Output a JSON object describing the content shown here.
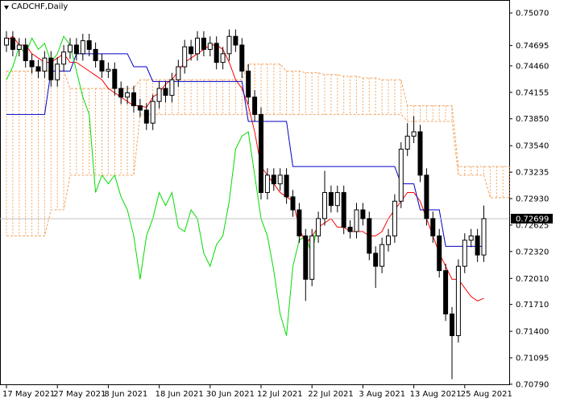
{
  "chart_data": {
    "type": "candlestick",
    "title": "CADCHF,Daily",
    "ylim": [
      0.7078,
      0.7521
    ],
    "yticks": [
      {
        "value": 0.7507,
        "label": "0.75070"
      },
      {
        "value": 0.74695,
        "label": "0.74695"
      },
      {
        "value": 0.7446,
        "label": "0.74460"
      },
      {
        "value": 0.74155,
        "label": "0.74155"
      },
      {
        "value": 0.7385,
        "label": "0.73850"
      },
      {
        "value": 0.7354,
        "label": "0.73540"
      },
      {
        "value": 0.73235,
        "label": "0.73235"
      },
      {
        "value": 0.7293,
        "label": "0.72930"
      },
      {
        "value": 0.72625,
        "label": "0.72625"
      },
      {
        "value": 0.7232,
        "label": "0.72320"
      },
      {
        "value": 0.7201,
        "label": "0.72010"
      },
      {
        "value": 0.7171,
        "label": "0.71710"
      },
      {
        "value": 0.714,
        "label": "0.71400"
      },
      {
        "value": 0.71095,
        "label": "0.71095"
      },
      {
        "value": 0.7079,
        "label": "0.70790"
      }
    ],
    "xticks": [
      {
        "value": 0,
        "label": "17 May 2021"
      },
      {
        "value": 8,
        "label": "27 May 2021"
      },
      {
        "value": 16,
        "label": "8 Jun 2021"
      },
      {
        "value": 24,
        "label": "18 Jun 2021"
      },
      {
        "value": 32,
        "label": "30 Jun 2021"
      },
      {
        "value": 40,
        "label": "12 Jul 2021"
      },
      {
        "value": 48,
        "label": "22 Jul 2021"
      },
      {
        "value": 56,
        "label": "3 Aug 2021"
      },
      {
        "value": 64,
        "label": "13 Aug 2021"
      },
      {
        "value": 72,
        "label": "25 Aug 2021"
      }
    ],
    "current_price": {
      "value": 0.72699,
      "label": "0.72699"
    },
    "open": [
      0.747,
      0.7478,
      0.7465,
      0.747,
      0.7452,
      0.7445,
      0.744,
      0.7455,
      0.743,
      0.7448,
      0.7462,
      0.747,
      0.746,
      0.7475,
      0.7465,
      0.7452,
      0.744,
      0.7442,
      0.742,
      0.741,
      0.7415,
      0.74,
      0.7395,
      0.738,
      0.7405,
      0.742,
      0.7412,
      0.743,
      0.7445,
      0.7468,
      0.746,
      0.7478,
      0.7465,
      0.7472,
      0.745,
      0.746,
      0.748,
      0.747,
      0.744,
      0.741,
      0.739,
      0.73,
      0.732,
      0.731,
      0.732,
      0.7295,
      0.728,
      0.725,
      0.72,
      0.725,
      0.727,
      0.73,
      0.7285,
      0.73,
      0.726,
      0.7255,
      0.728,
      0.727,
      0.723,
      0.7215,
      0.724,
      0.725,
      0.729,
      0.735,
      0.7365,
      0.737,
      0.732,
      0.727,
      0.725,
      0.721,
      0.716,
      0.7135,
      0.7215,
      0.7245,
      0.725,
      0.7228
    ],
    "high": [
      0.7486,
      0.7486,
      0.7478,
      0.7478,
      0.746,
      0.7453,
      0.7463,
      0.7463,
      0.7456,
      0.747,
      0.7478,
      0.7478,
      0.7483,
      0.7483,
      0.7473,
      0.746,
      0.745,
      0.745,
      0.7428,
      0.7423,
      0.7423,
      0.7408,
      0.7403,
      0.7413,
      0.7428,
      0.7428,
      0.7438,
      0.7453,
      0.7476,
      0.7476,
      0.7486,
      0.7486,
      0.748,
      0.748,
      0.7468,
      0.7488,
      0.7488,
      0.7478,
      0.7448,
      0.7418,
      0.7398,
      0.7328,
      0.7328,
      0.7328,
      0.7328,
      0.7303,
      0.7288,
      0.7258,
      0.7258,
      0.7278,
      0.7325,
      0.7308,
      0.7308,
      0.7308,
      0.7268,
      0.7288,
      0.7288,
      0.7278,
      0.7238,
      0.7248,
      0.7258,
      0.7298,
      0.7358,
      0.738,
      0.7388,
      0.7378,
      0.7328,
      0.7278,
      0.7258,
      0.7218,
      0.7168,
      0.7223,
      0.7253,
      0.7258,
      0.7258,
      0.7285
    ],
    "low": [
      0.7462,
      0.7457,
      0.7457,
      0.7444,
      0.7437,
      0.7432,
      0.7432,
      0.7422,
      0.7422,
      0.744,
      0.7454,
      0.7452,
      0.7452,
      0.7457,
      0.7444,
      0.7432,
      0.7432,
      0.7412,
      0.7402,
      0.7402,
      0.7392,
      0.7387,
      0.7372,
      0.7372,
      0.7397,
      0.7404,
      0.7404,
      0.7422,
      0.7437,
      0.7452,
      0.7452,
      0.7457,
      0.7457,
      0.7442,
      0.7442,
      0.7452,
      0.7462,
      0.7432,
      0.7402,
      0.7382,
      0.7292,
      0.7292,
      0.7302,
      0.7302,
      0.7287,
      0.7272,
      0.7242,
      0.7175,
      0.7192,
      0.7242,
      0.7262,
      0.7277,
      0.7277,
      0.7252,
      0.7247,
      0.7247,
      0.7262,
      0.7222,
      0.719,
      0.7207,
      0.7232,
      0.7242,
      0.7282,
      0.7342,
      0.7357,
      0.7312,
      0.7262,
      0.7242,
      0.7202,
      0.7152,
      0.7085,
      0.7127,
      0.7207,
      0.7237,
      0.722,
      0.722
    ],
    "close": [
      0.7478,
      0.7465,
      0.747,
      0.7452,
      0.7445,
      0.744,
      0.7455,
      0.743,
      0.7448,
      0.7462,
      0.747,
      0.746,
      0.7475,
      0.7465,
      0.7452,
      0.744,
      0.7442,
      0.742,
      0.741,
      0.7415,
      0.74,
      0.7395,
      0.738,
      0.7405,
      0.742,
      0.7412,
      0.743,
      0.7445,
      0.7468,
      0.746,
      0.7478,
      0.7465,
      0.7472,
      0.745,
      0.746,
      0.748,
      0.747,
      0.744,
      0.741,
      0.739,
      0.73,
      0.732,
      0.731,
      0.732,
      0.7295,
      0.728,
      0.725,
      0.72,
      0.725,
      0.727,
      0.73,
      0.7285,
      0.73,
      0.726,
      0.7255,
      0.728,
      0.727,
      0.723,
      0.7215,
      0.724,
      0.725,
      0.729,
      0.735,
      0.7365,
      0.737,
      0.732,
      0.727,
      0.725,
      0.721,
      0.716,
      0.7135,
      0.7215,
      0.7245,
      0.725,
      0.7228,
      0.72699
    ],
    "lines": [
      {
        "color": "#ff0000",
        "values": [
          0.7475,
          0.748,
          0.747,
          0.747,
          0.746,
          0.7455,
          0.745,
          0.745,
          0.7455,
          0.746,
          0.745,
          0.745,
          0.7445,
          0.744,
          0.7435,
          0.743,
          0.742,
          0.7415,
          0.741,
          0.7405,
          0.74,
          0.74,
          0.7398,
          0.741,
          0.7415,
          0.7425,
          0.743,
          0.744,
          0.745,
          0.7455,
          0.746,
          0.7465,
          0.747,
          0.747,
          0.7465,
          0.745,
          0.743,
          0.742,
          0.74,
          0.737,
          0.733,
          0.732,
          0.731,
          0.73,
          0.7295,
          0.729,
          0.726,
          0.724,
          0.725,
          0.726,
          0.7265,
          0.727,
          0.726,
          0.726,
          0.7255,
          0.7255,
          0.7255,
          0.725,
          0.725,
          0.7255,
          0.727,
          0.728,
          0.729,
          0.73,
          0.73,
          0.729,
          0.727,
          0.725,
          0.723,
          0.7215,
          0.72,
          0.72,
          0.719,
          0.718,
          0.7175,
          0.7178
        ]
      },
      {
        "color": "#0000c8",
        "values": [
          0.739,
          0.739,
          0.739,
          0.739,
          0.739,
          0.739,
          0.739,
          0.744,
          0.744,
          0.744,
          0.744,
          0.746,
          0.746,
          0.746,
          0.746,
          0.746,
          0.746,
          0.746,
          0.746,
          0.746,
          0.7445,
          0.7445,
          0.7445,
          0.7428,
          0.7428,
          0.7428,
          0.7428,
          0.7428,
          0.7428,
          0.7428,
          0.7428,
          0.7428,
          0.7428,
          0.7428,
          0.7428,
          0.7428,
          0.7428,
          0.7428,
          0.7382,
          0.7382,
          0.7382,
          0.7382,
          0.7382,
          0.7382,
          0.7382,
          0.733,
          0.733,
          0.733,
          0.733,
          0.733,
          0.733,
          0.733,
          0.733,
          0.733,
          0.733,
          0.733,
          0.733,
          0.733,
          0.733,
          0.733,
          0.733,
          0.733,
          0.731,
          0.731,
          0.731,
          0.728,
          0.728,
          0.728,
          0.728,
          0.7238,
          0.7238,
          0.7238,
          0.7238,
          0.7238,
          0.7238,
          0.7238
        ]
      },
      {
        "color": "#00dc00",
        "values": [
          0.743,
          0.7445,
          0.7468,
          0.746,
          0.7478,
          0.7465,
          0.7472,
          0.745,
          0.746,
          0.748,
          0.747,
          0.744,
          0.741,
          0.739,
          0.73,
          0.732,
          0.731,
          0.732,
          0.7295,
          0.728,
          0.725,
          0.72,
          0.725,
          0.727,
          0.73,
          0.7285,
          0.73,
          0.726,
          0.7255,
          0.728,
          0.727,
          0.723,
          0.7215,
          0.724,
          0.725,
          0.729,
          0.735,
          0.7365,
          0.737,
          0.732,
          0.727,
          0.725,
          0.721,
          0.716,
          0.7135,
          0.7215,
          0.7245,
          0.725,
          0.7228,
          0.72699
        ]
      }
    ],
    "cloud": {
      "color": "#f4a460",
      "span_a": [
        0.744,
        0.744,
        0.744,
        0.744,
        0.744,
        0.744,
        0.744,
        0.744,
        0.744,
        0.744,
        0.742,
        0.742,
        0.742,
        0.742,
        0.742,
        0.742,
        0.742,
        0.742,
        0.742,
        0.742,
        0.742,
        0.743,
        0.743,
        0.743,
        0.743,
        0.743,
        0.743,
        0.743,
        0.743,
        0.743,
        0.743,
        0.743,
        0.743,
        0.743,
        0.743,
        0.743,
        0.743,
        0.743,
        0.7448,
        0.7448,
        0.7448,
        0.7448,
        0.7448,
        0.7448,
        0.744,
        0.744,
        0.744,
        0.7438,
        0.7438,
        0.7438,
        0.7436,
        0.7436,
        0.7436,
        0.7434,
        0.7434,
        0.7434,
        0.7432,
        0.7432,
        0.7432,
        0.743,
        0.743,
        0.743,
        0.743,
        0.74,
        0.74,
        0.74,
        0.74,
        0.74,
        0.74,
        0.74,
        0.74,
        0.733,
        0.733,
        0.733,
        0.733,
        0.733,
        0.733,
        0.733,
        0.733,
        0.733
      ],
      "span_b": [
        0.725,
        0.725,
        0.725,
        0.725,
        0.725,
        0.725,
        0.725,
        0.728,
        0.728,
        0.728,
        0.732,
        0.732,
        0.732,
        0.732,
        0.732,
        0.732,
        0.732,
        0.732,
        0.732,
        0.732,
        0.732,
        0.739,
        0.739,
        0.739,
        0.739,
        0.739,
        0.739,
        0.739,
        0.739,
        0.739,
        0.739,
        0.739,
        0.739,
        0.739,
        0.739,
        0.739,
        0.739,
        0.739,
        0.739,
        0.739,
        0.739,
        0.739,
        0.739,
        0.739,
        0.739,
        0.739,
        0.739,
        0.739,
        0.739,
        0.739,
        0.739,
        0.739,
        0.739,
        0.739,
        0.739,
        0.739,
        0.739,
        0.739,
        0.739,
        0.739,
        0.739,
        0.739,
        0.739,
        0.7382,
        0.7382,
        0.7382,
        0.7382,
        0.7382,
        0.7382,
        0.7382,
        0.7382,
        0.732,
        0.732,
        0.732,
        0.732,
        0.732,
        0.7294,
        0.7294,
        0.7294,
        0.7294
      ]
    }
  }
}
